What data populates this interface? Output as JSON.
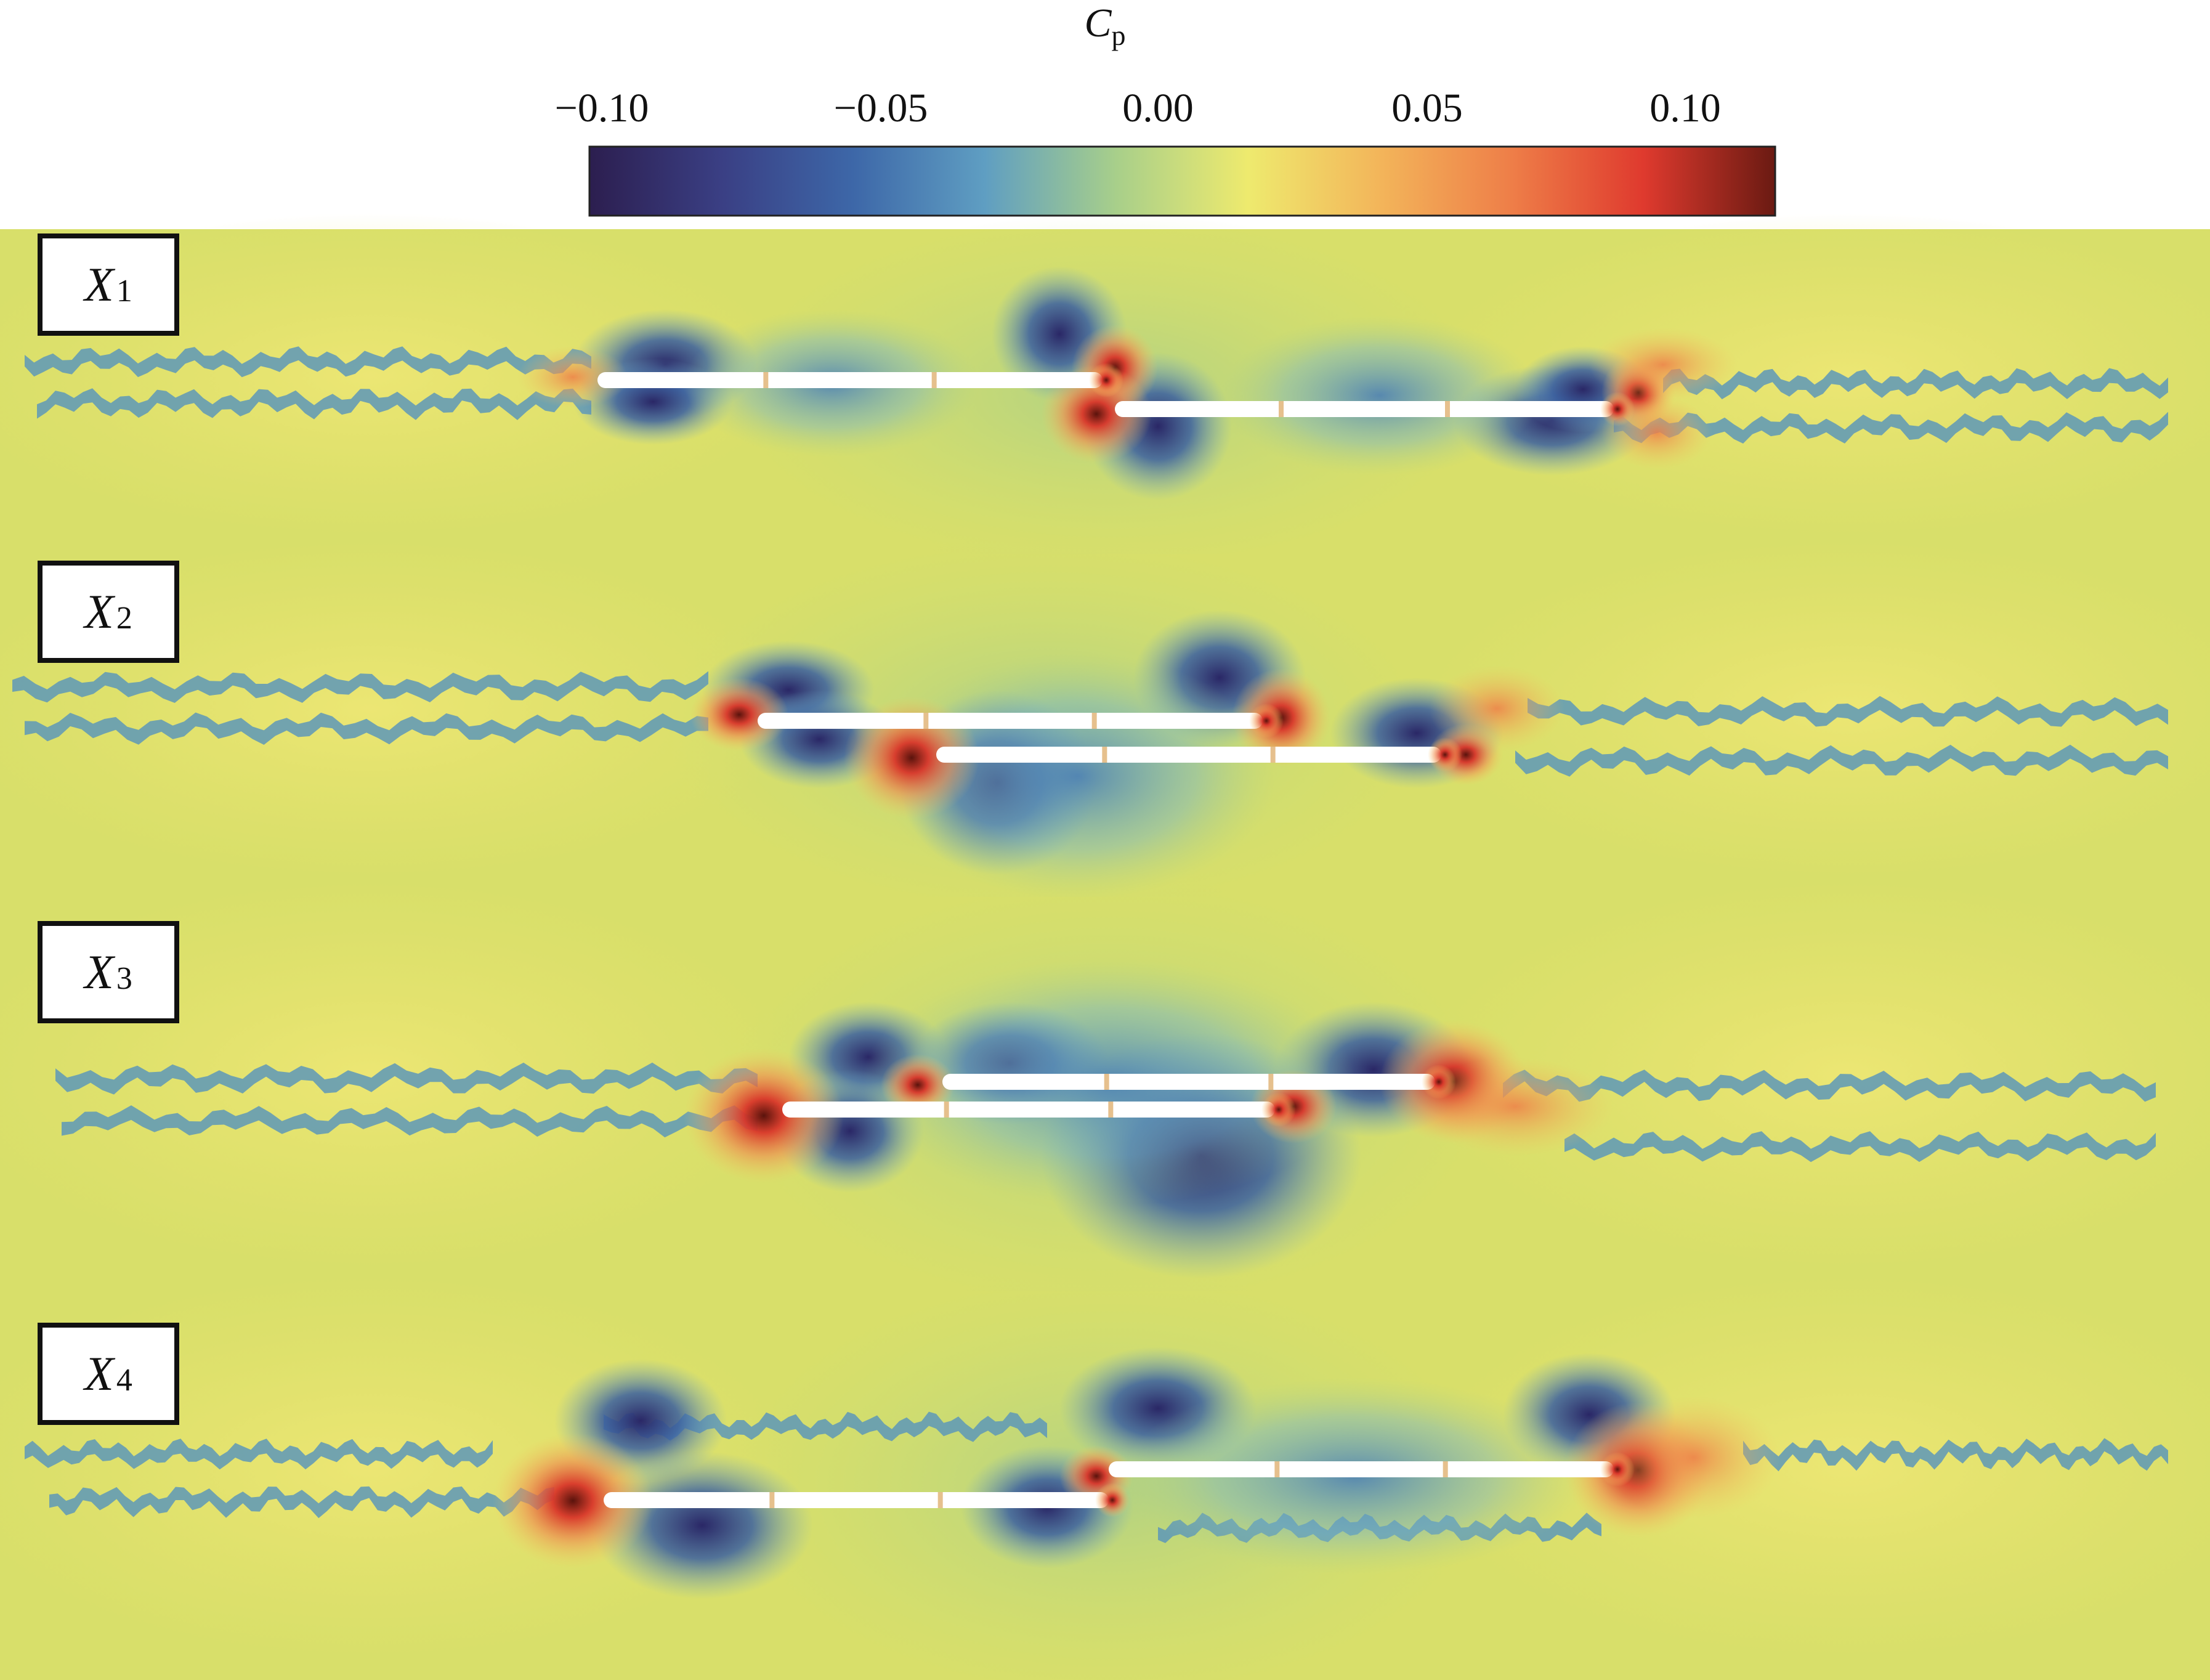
{
  "colorbar": {
    "title_main": "C",
    "title_sub": "p",
    "ticks": [
      "−0.10",
      "−0.05",
      "0.00",
      "0.05",
      "0.10"
    ],
    "colors": [
      "#2c1e4f",
      "#3a3f84",
      "#3d67a8",
      "#5f9ec2",
      "#a8cf8a",
      "#eeea6e",
      "#f3b55a",
      "#ee7e48",
      "#df3a2e",
      "#6a1a12"
    ]
  },
  "panels": [
    {
      "label_main": "X",
      "label_sub": "1"
    },
    {
      "label_main": "X",
      "label_sub": "2"
    },
    {
      "label_main": "X",
      "label_sub": "3"
    },
    {
      "label_main": "X",
      "label_sub": "4"
    }
  ],
  "colors": {
    "background_field": "#d8df6a",
    "strong_negative": "#2c2a6e",
    "negative": "#4d86b8",
    "positive": "#ef7d4a",
    "strong_positive": "#6a1a12",
    "body": "#ffffff"
  }
}
